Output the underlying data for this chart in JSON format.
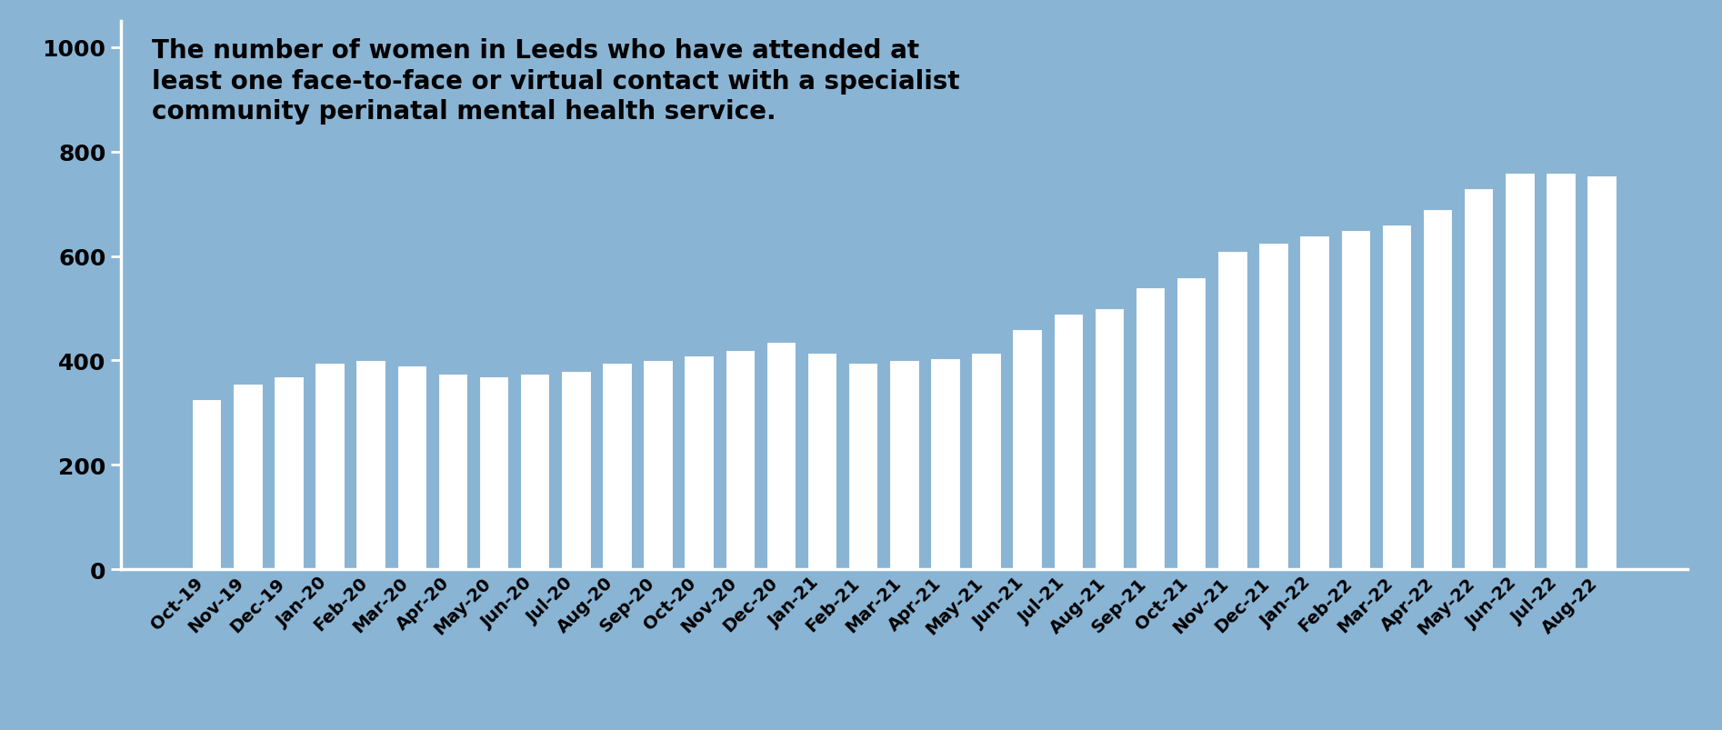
{
  "categories": [
    "Oct-19",
    "Nov-19",
    "Dec-19",
    "Jan-20",
    "Feb-20",
    "Mar-20",
    "Apr-20",
    "May-20",
    "Jun-20",
    "Jul-20",
    "Aug-20",
    "Sep-20",
    "Oct-20",
    "Nov-20",
    "Dec-20",
    "Jan-21",
    "Feb-21",
    "Mar-21",
    "Apr-21",
    "May-21",
    "Jun-21",
    "Jul-21",
    "Aug-21",
    "Sep-21",
    "Oct-21",
    "Nov-21",
    "Dec-21",
    "Jan-22",
    "Feb-22",
    "Mar-22",
    "Apr-22",
    "May-22",
    "Jun-22",
    "Jul-22",
    "Aug-22"
  ],
  "values": [
    325,
    355,
    370,
    395,
    400,
    390,
    375,
    370,
    375,
    380,
    395,
    400,
    410,
    420,
    435,
    415,
    395,
    400,
    405,
    415,
    460,
    490,
    500,
    540,
    560,
    610,
    625,
    640,
    650,
    660,
    690,
    730,
    760,
    760,
    755
  ],
  "bar_color": "#ffffff",
  "background_color": "#8ab4d4",
  "outer_background": "#ffffff",
  "title": "The number of women in Leeds who have attended at\nleast one face-to-face or virtual contact with a specialist\ncommunity perinatal mental health service.",
  "title_fontsize": 20,
  "ylabel_ticks": [
    0,
    200,
    400,
    600,
    800,
    1000
  ],
  "ylim": [
    0,
    1050
  ],
  "tick_fontsize": 18,
  "xlabel_fontsize": 14,
  "axis_color": "#ffffff",
  "text_color": "#000000",
  "spine_linewidth": 2.5
}
